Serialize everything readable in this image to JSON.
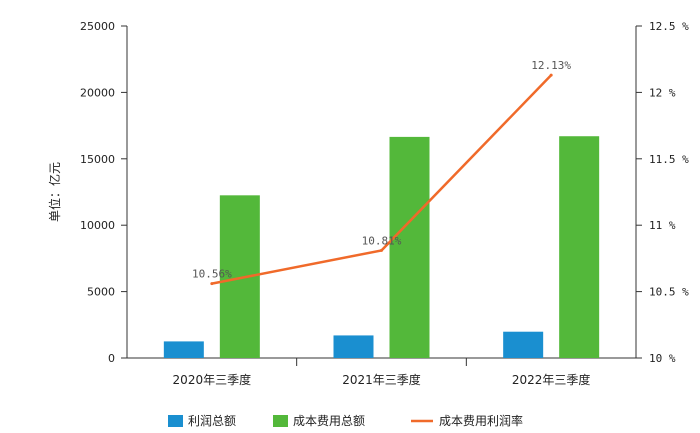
{
  "chart_data": {
    "type": "bar",
    "categories": [
      "2020年三季度",
      "2021年三季度",
      "2022年三季度"
    ],
    "series": [
      {
        "name": "利润总额",
        "kind": "bar",
        "axis": "left",
        "color": "#1a8fd0",
        "values": [
          1250,
          1700,
          1980
        ]
      },
      {
        "name": "成本费用总额",
        "kind": "bar",
        "axis": "left",
        "color": "#53b83a",
        "values": [
          12250,
          16650,
          16700
        ]
      },
      {
        "name": "成本费用利润率",
        "kind": "line",
        "axis": "right",
        "color": "#f06a2a",
        "values": [
          10.56,
          10.81,
          12.13
        ],
        "labels": [
          "10.56%",
          "10.81%",
          "12.13%"
        ]
      }
    ],
    "ylabel": "单位：亿元",
    "ylim": [
      0,
      25000
    ],
    "yticks": [
      "0",
      "5000",
      "10000",
      "15000",
      "20000",
      "25000"
    ],
    "y2lim": [
      10,
      12.5
    ],
    "y2ticks": [
      "10 %",
      "10.5 %",
      "11 %",
      "11.5 %",
      "12 %",
      "12.5 %"
    ],
    "legend": "bottom",
    "grid": false
  }
}
